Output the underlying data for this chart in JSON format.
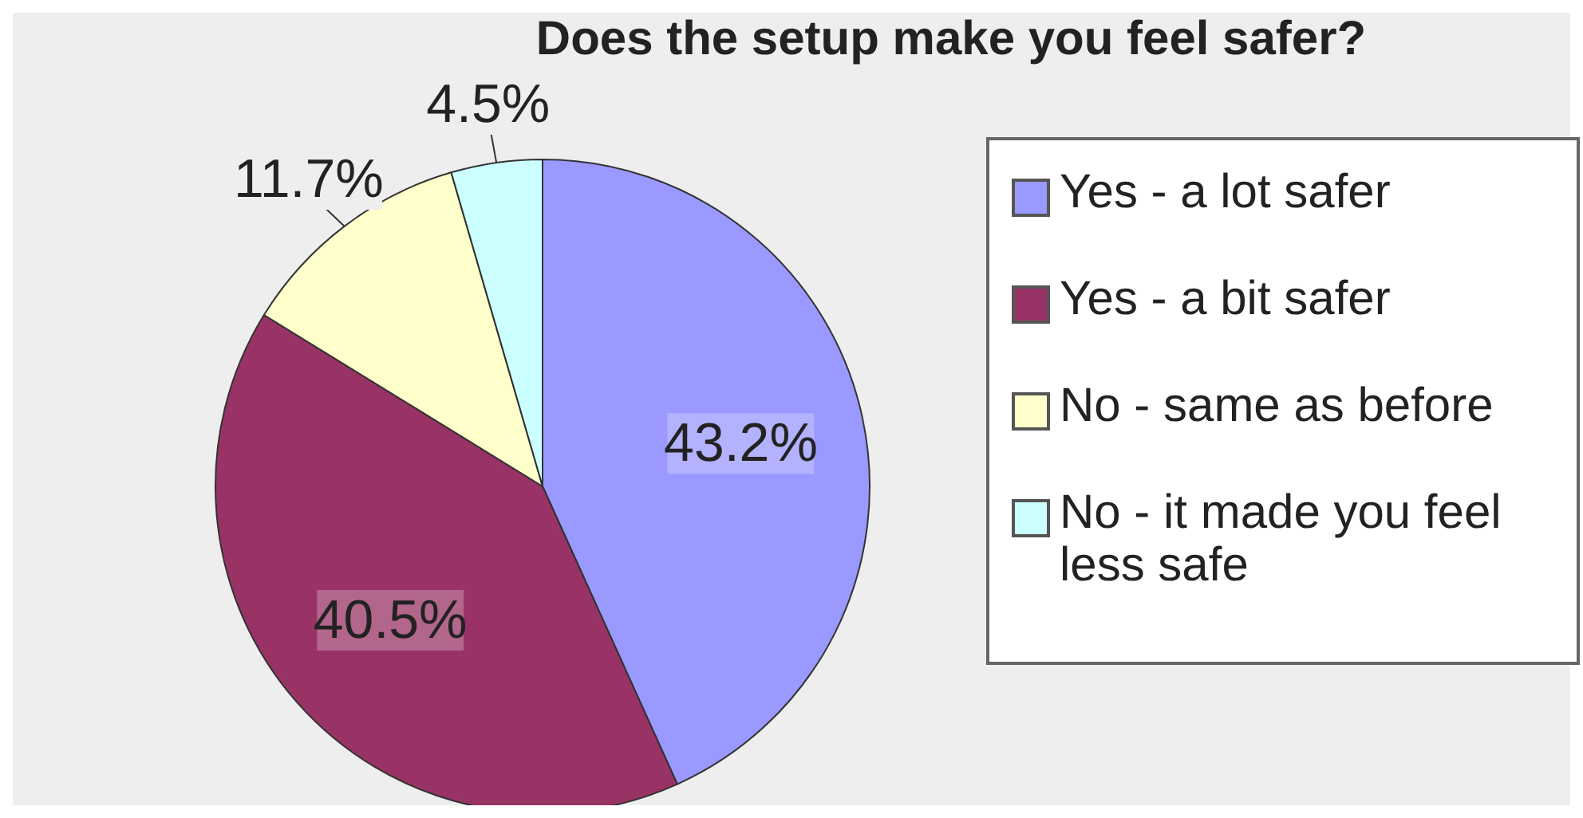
{
  "chart_data": {
    "type": "pie",
    "title": "Does the setup make you feel safer?",
    "categories": [
      "Yes - a lot safer",
      "Yes - a bit safer",
      "No - same as before",
      "No - it made you feel less safe"
    ],
    "values": [
      43.2,
      40.5,
      11.7,
      4.5
    ],
    "colors": [
      "#9999ff",
      "#993366",
      "#ffffcc",
      "#ccffff"
    ],
    "value_labels": [
      "43.2%",
      "40.5%",
      "11.7%",
      "4.5%"
    ],
    "legend": "right"
  }
}
